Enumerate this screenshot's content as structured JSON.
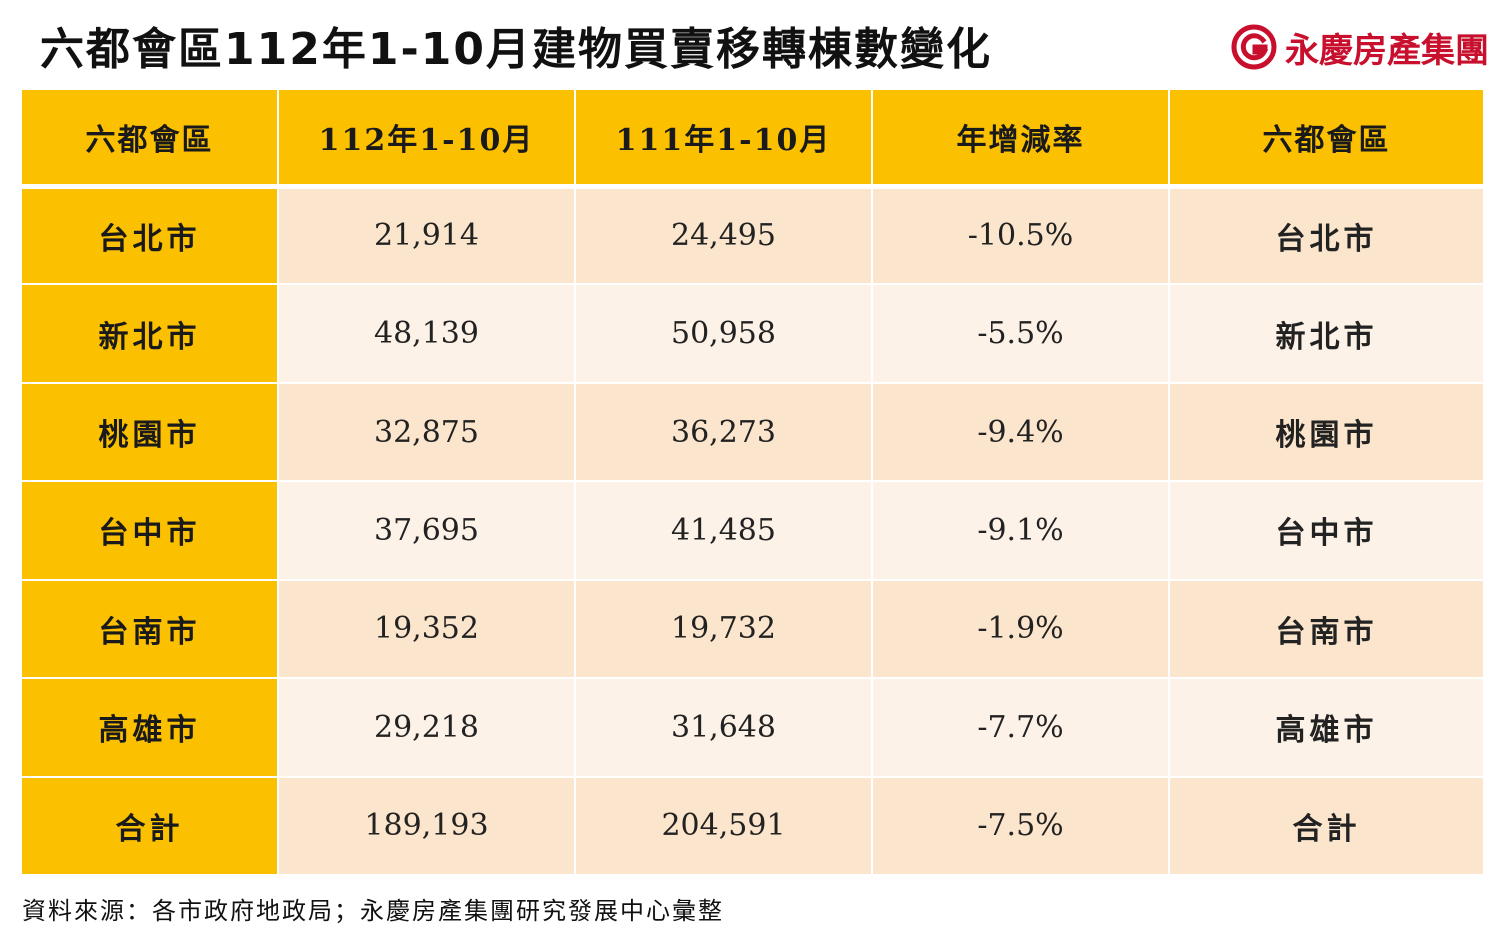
{
  "page": {
    "title": "六都會區112年1-10月建物買賣移轉棟數變化",
    "brand": "永慶房產集團",
    "source": "資料來源：各市政府地政局；永慶房產集團研究發展中心彙整"
  },
  "colors": {
    "header_bg": "#fbc000",
    "row_odd_bg": "#fbe5cc",
    "row_even_bg": "#fdf2e8",
    "brand_red": "#c8102e"
  },
  "chart_data": {
    "type": "table",
    "columns": [
      "六都會區",
      "112年1-10月",
      "111年1-10月",
      "年增減率",
      "六都會區"
    ],
    "rows": [
      [
        "台北市",
        "21,914",
        "24,495",
        "-10.5%",
        "台北市"
      ],
      [
        "新北市",
        "48,139",
        "50,958",
        "-5.5%",
        "新北市"
      ],
      [
        "桃園市",
        "32,875",
        "36,273",
        "-9.4%",
        "桃園市"
      ],
      [
        "台中市",
        "37,695",
        "41,485",
        "-9.1%",
        "台中市"
      ],
      [
        "台南市",
        "19,352",
        "19,732",
        "-1.9%",
        "台南市"
      ],
      [
        "高雄市",
        "29,218",
        "31,648",
        "-7.7%",
        "高雄市"
      ],
      [
        "合計",
        "189,193",
        "204,591",
        "-7.5%",
        "合計"
      ]
    ]
  }
}
